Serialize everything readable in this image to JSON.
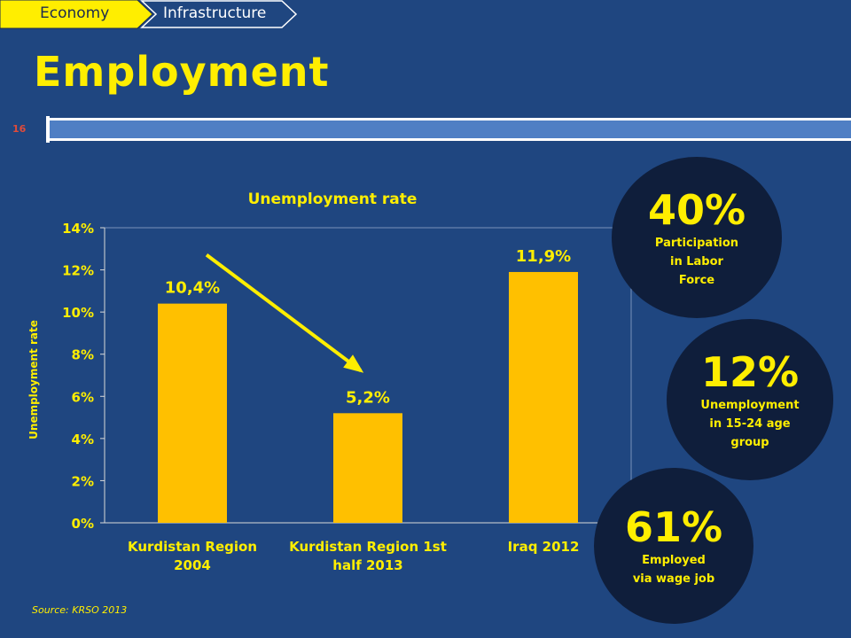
{
  "breadcrumb": {
    "items": [
      "Economy",
      "Infrastructure"
    ]
  },
  "page": {
    "title": "Employment",
    "slide_number": "16"
  },
  "colors": {
    "background": "#1f4680",
    "accent": "#ffee00",
    "bar": "#ffc000",
    "circle": "#0f1e3b",
    "arrow": "#ffee00"
  },
  "chart_data": {
    "type": "bar",
    "title": "Unemployment rate",
    "xlabel": "",
    "ylabel": "Unemployment rate",
    "categories": [
      [
        "Kurdistan Region",
        "2004"
      ],
      [
        "Kurdistan Region 1st",
        "half 2013"
      ],
      [
        "Iraq 2012"
      ]
    ],
    "values": [
      10.4,
      5.2,
      11.9
    ],
    "data_labels": [
      "10,4%",
      "5,2%",
      "11,9%"
    ],
    "ylim": [
      0,
      14
    ],
    "yticks": [
      0,
      2,
      4,
      6,
      8,
      10,
      12,
      14
    ],
    "ytick_labels": [
      "0%",
      "2%",
      "4%",
      "6%",
      "8%",
      "10%",
      "12%",
      "14%"
    ],
    "grid": false,
    "legend": "none"
  },
  "stats": [
    {
      "value": "40%",
      "lines": [
        "Participation",
        "in Labor",
        "Force"
      ]
    },
    {
      "value": "12%",
      "lines": [
        "Unemployment",
        "in 15-24 age",
        "group"
      ]
    },
    {
      "value": "61%",
      "lines": [
        "Employed",
        "via wage job"
      ]
    }
  ],
  "source": "Source: KRSO 2013"
}
